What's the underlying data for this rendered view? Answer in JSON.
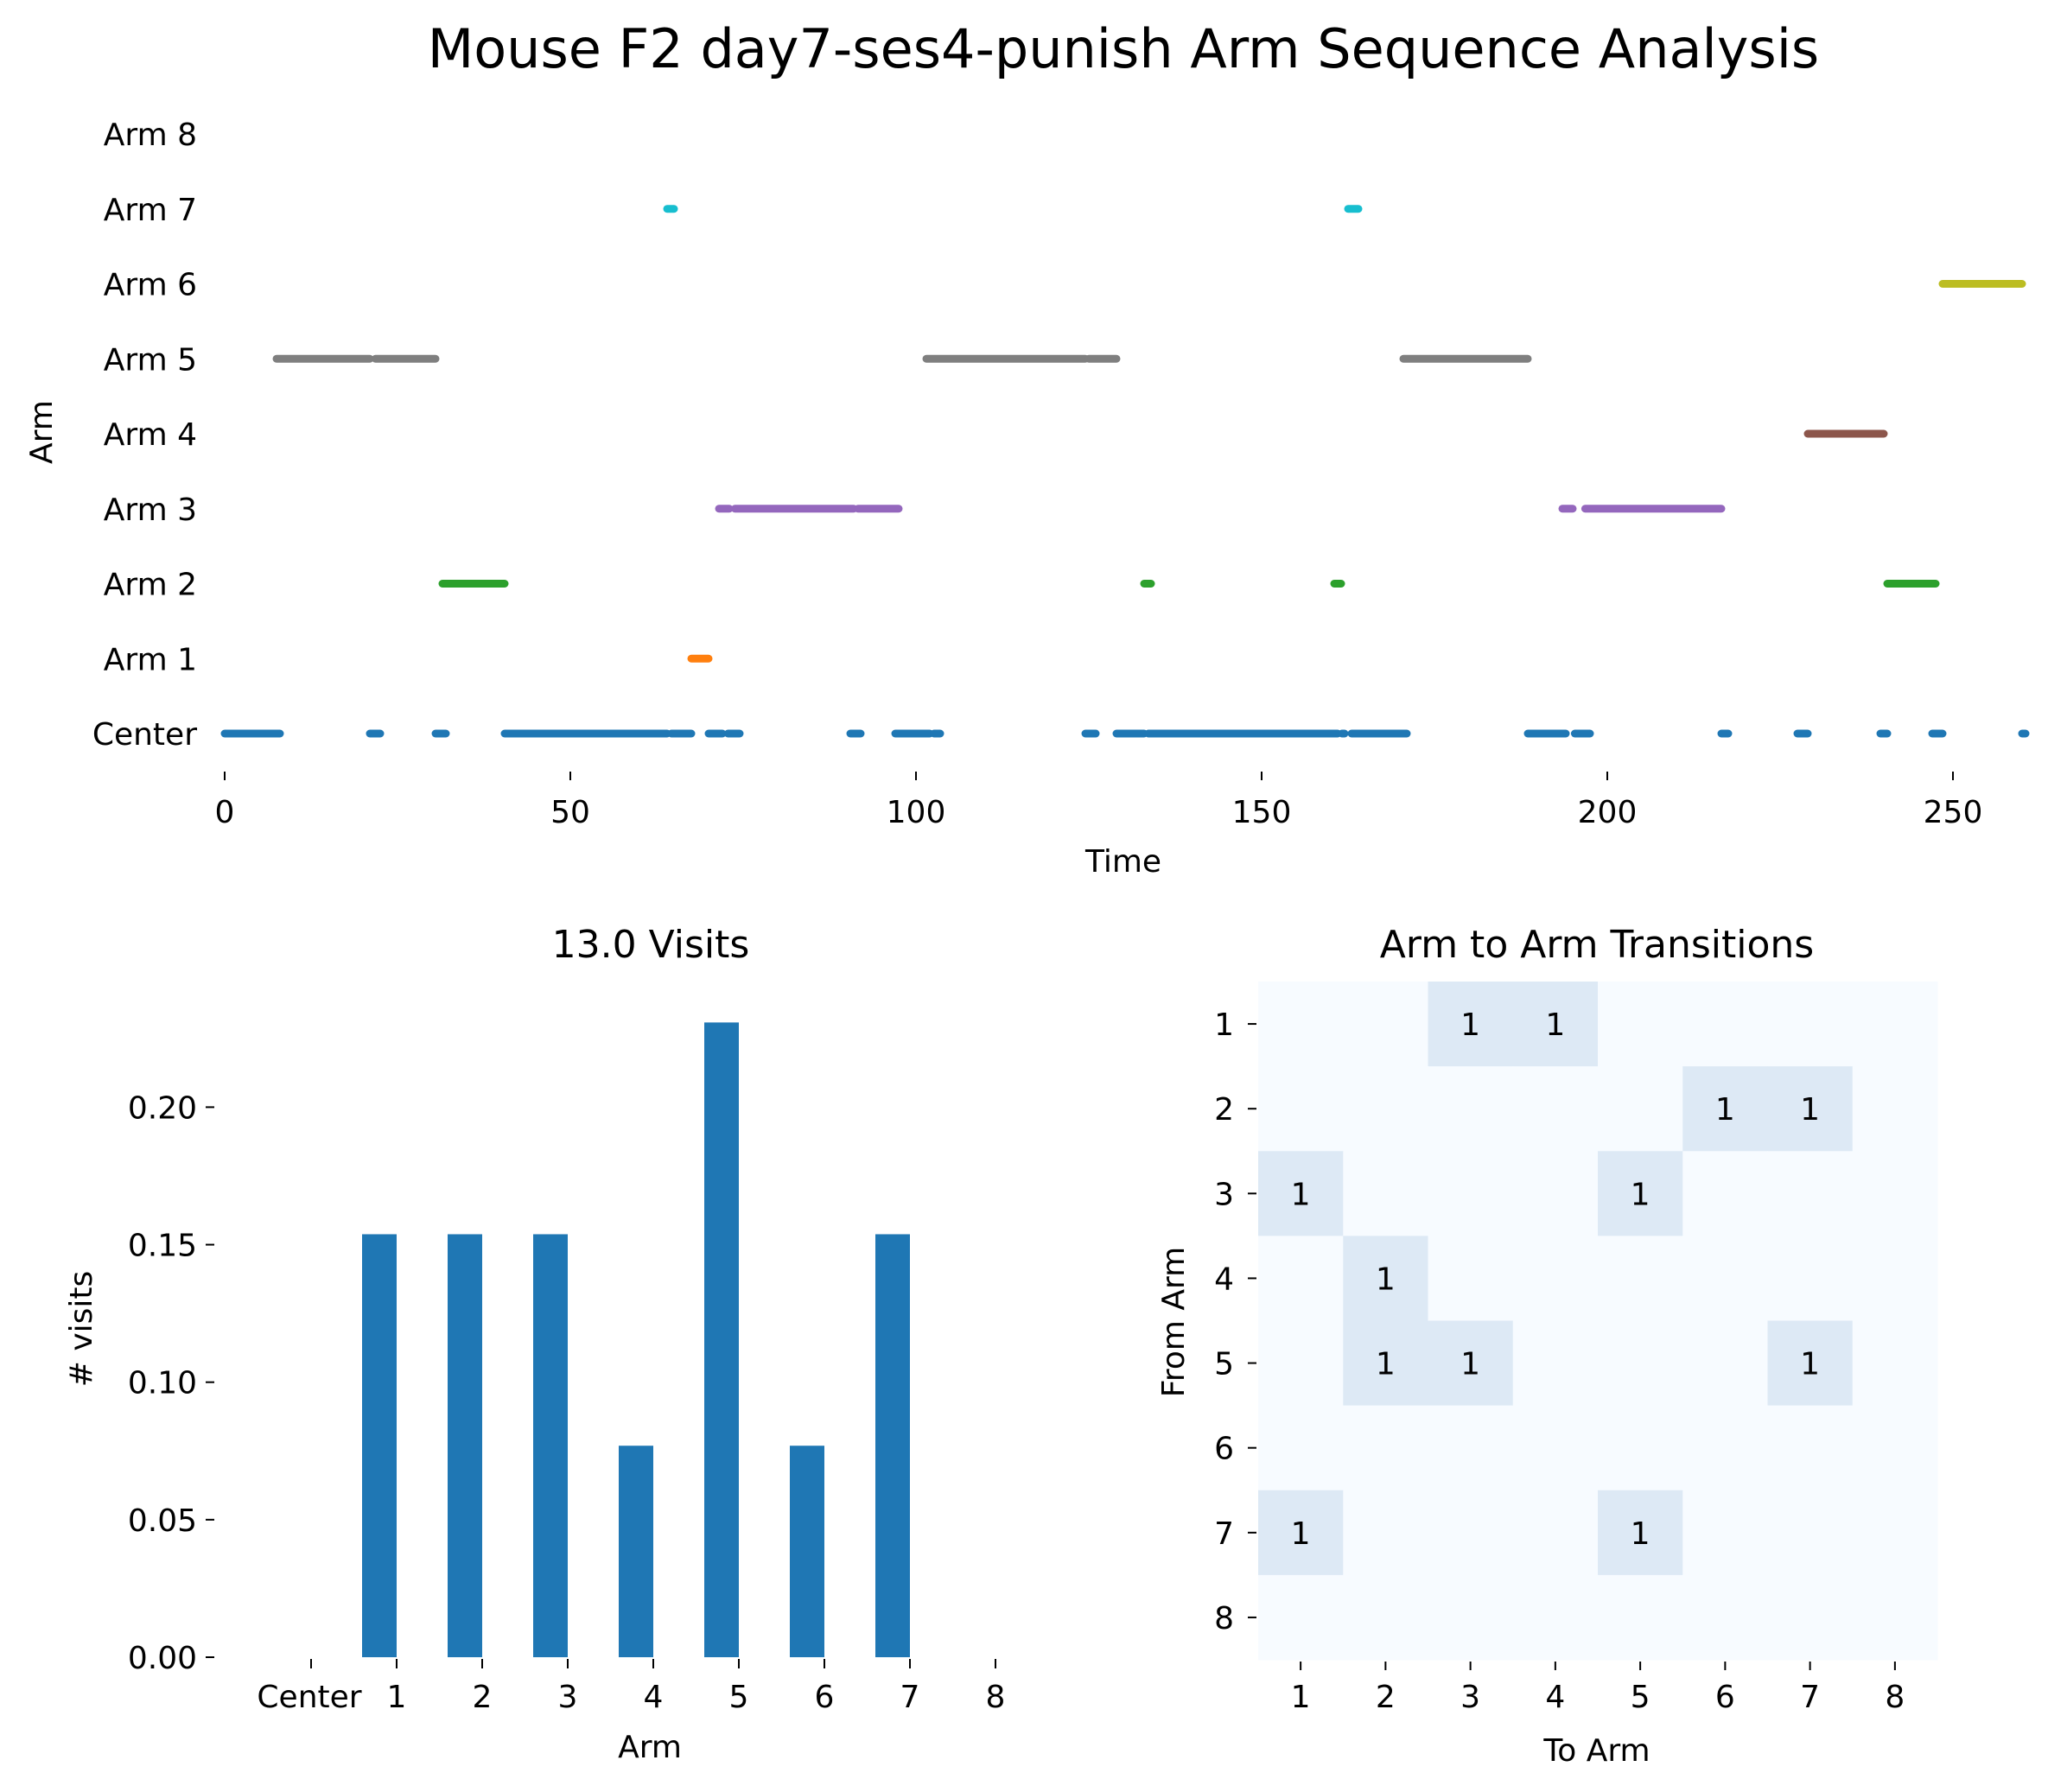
{
  "figure": {
    "title": "Mouse F2 day7-ses4-punish Arm Sequence Analysis"
  },
  "chart_data": [
    {
      "type": "scatter",
      "title": "",
      "xlabel": "Time",
      "ylabel": "Arm",
      "xlim": [
        0,
        260
      ],
      "xticks": [
        0,
        50,
        100,
        150,
        200,
        250
      ],
      "categories": [
        "Center",
        "Arm 1",
        "Arm 2",
        "Arm 3",
        "Arm 4",
        "Arm 5",
        "Arm 6",
        "Arm 7",
        "Arm 8"
      ],
      "grid": false,
      "legend": "none",
      "colors": [
        "#1f77b4",
        "#ff7f0e",
        "#2ca02c",
        "#9467bd",
        "#8c564b",
        "#7f7f7f",
        "#bcbd22",
        "#17becf",
        "#d62728"
      ],
      "segments": [
        {
          "arm": 0,
          "segments": [
            [
              0,
              8
            ],
            [
              21,
              22.5
            ],
            [
              30.5,
              32
            ],
            [
              40.5,
              64
            ],
            [
              64.6,
              67.5
            ],
            [
              70,
              72
            ],
            [
              72.8,
              74.5
            ],
            [
              90.5,
              92
            ],
            [
              97,
              102
            ],
            [
              102.6,
              103.5
            ],
            [
              124.5,
              126
            ],
            [
              129,
              133
            ],
            [
              133.6,
              161
            ],
            [
              161.6,
              162
            ],
            [
              163,
              171
            ],
            [
              188.5,
              194
            ],
            [
              195.3,
              197.5
            ],
            [
              216.5,
              217.5
            ],
            [
              227.5,
              229
            ],
            [
              239.5,
              240.5
            ],
            [
              247,
              248.5
            ],
            [
              260,
              260.5
            ]
          ]
        },
        {
          "arm": 1,
          "segments": [
            [
              67.5,
              70
            ]
          ]
        },
        {
          "arm": 2,
          "segments": [
            [
              31.5,
              40.5
            ],
            [
              133,
              134
            ],
            [
              160.5,
              161.5
            ],
            [
              240.5,
              247.5
            ]
          ]
        },
        {
          "arm": 3,
          "segments": [
            [
              71.5,
              73
            ],
            [
              73.8,
              91
            ],
            [
              91.6,
              97.5
            ],
            [
              193.5,
              195
            ],
            [
              196.8,
              216.5
            ]
          ]
        },
        {
          "arm": 4,
          "segments": [
            [
              229,
              240
            ]
          ]
        },
        {
          "arm": 5,
          "segments": [
            [
              7.5,
              21
            ],
            [
              21.8,
              30.5
            ],
            [
              101.5,
              124.5
            ],
            [
              125,
              129
            ],
            [
              170.5,
              188.5
            ]
          ]
        },
        {
          "arm": 6,
          "segments": [
            [
              248.5,
              260
            ]
          ]
        },
        {
          "arm": 7,
          "segments": [
            [
              64,
              65
            ],
            [
              162.5,
              164
            ]
          ]
        },
        {
          "arm": 8,
          "segments": []
        }
      ]
    },
    {
      "type": "bar",
      "title": "13.0 Visits",
      "xlabel": "Arm",
      "ylabel": "# visits",
      "categories": [
        "Center",
        "1",
        "2",
        "3",
        "4",
        "5",
        "6",
        "7",
        "8"
      ],
      "values": [
        0,
        0.1538,
        0.1538,
        0.1538,
        0.0769,
        0.2308,
        0.0769,
        0.1538,
        0
      ],
      "ylim": [
        0,
        0.235
      ],
      "yticks": [
        "0.00",
        "0.05",
        "0.10",
        "0.15",
        "0.20"
      ],
      "bar_color": "#1f77b4",
      "grid": false
    },
    {
      "type": "heatmap",
      "title": "Arm to Arm Transitions",
      "xlabel": "To Arm",
      "ylabel": "From Arm",
      "x_categories": [
        "1",
        "2",
        "3",
        "4",
        "5",
        "6",
        "7",
        "8"
      ],
      "y_categories": [
        "1",
        "2",
        "3",
        "4",
        "5",
        "6",
        "7",
        "8"
      ],
      "matrix": [
        [
          0,
          0,
          1,
          1,
          0,
          0,
          0,
          0
        ],
        [
          0,
          0,
          0,
          0,
          0,
          1,
          1,
          0
        ],
        [
          1,
          0,
          0,
          0,
          1,
          0,
          0,
          0
        ],
        [
          0,
          1,
          0,
          0,
          0,
          0,
          0,
          0
        ],
        [
          0,
          1,
          1,
          0,
          0,
          0,
          1,
          0
        ],
        [
          0,
          0,
          0,
          0,
          0,
          0,
          0,
          0
        ],
        [
          1,
          0,
          0,
          0,
          1,
          0,
          0,
          0
        ],
        [
          0,
          0,
          0,
          0,
          0,
          0,
          0,
          0
        ]
      ],
      "cell_colors": {
        "zero": "#f7fbff",
        "one": "#dde9f5"
      }
    }
  ]
}
